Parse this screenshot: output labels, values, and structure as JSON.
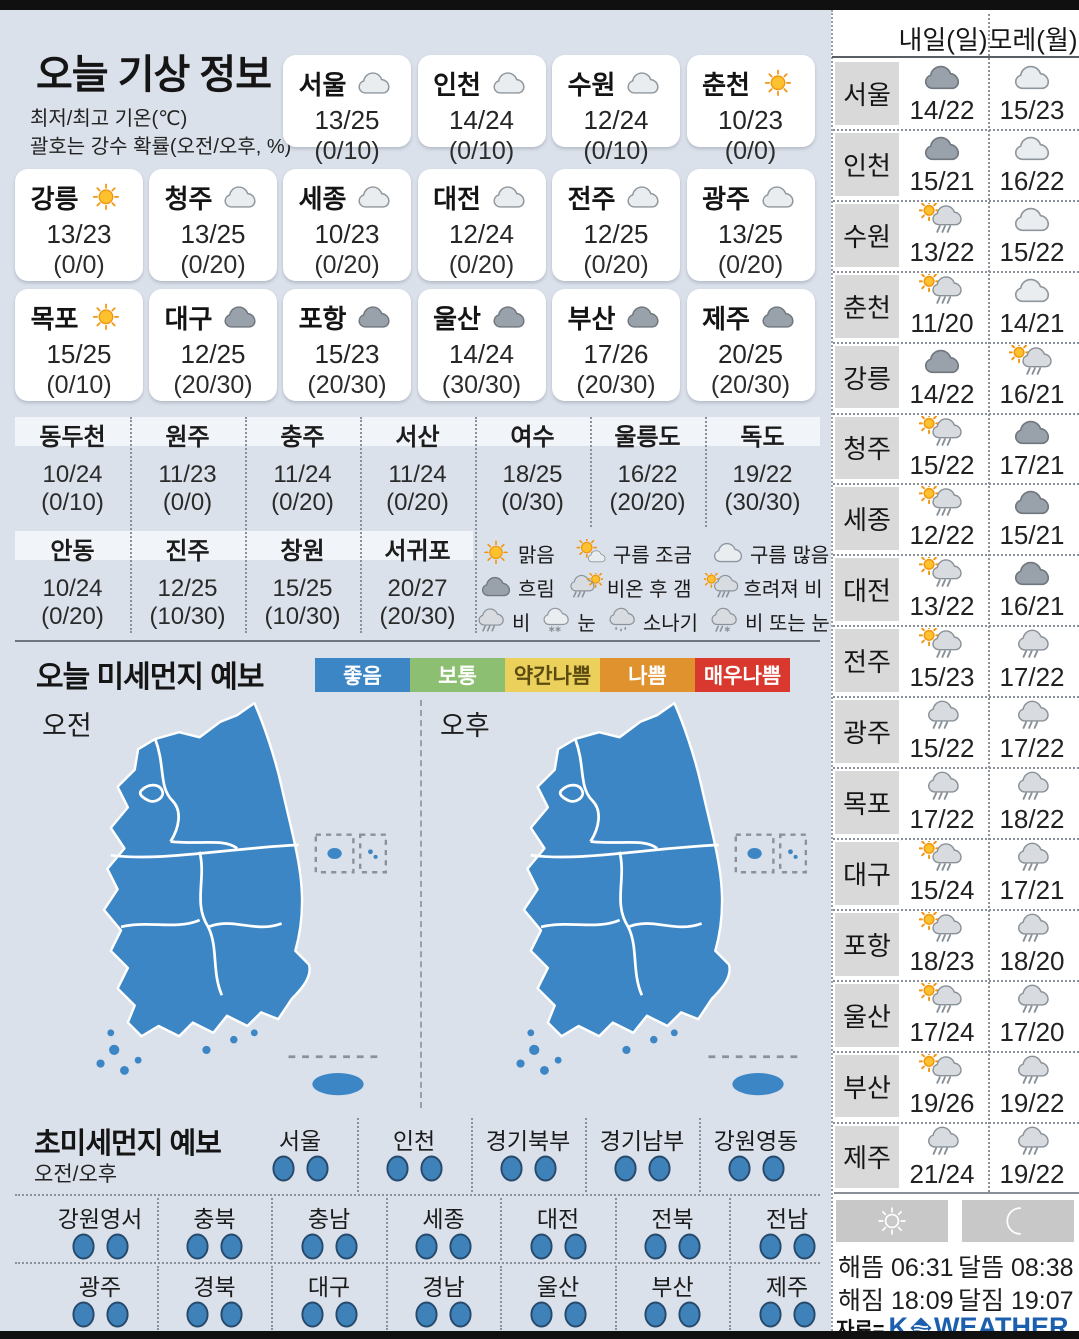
{
  "page": {
    "source_prefix": "자료=",
    "brand_k": "K",
    "brand_rest": "WEATHER"
  },
  "today": {
    "title": "오늘 기상 정보",
    "note_line1": "최저/최고 기온(℃)",
    "note_line2": "괄호는 강수 확률(오전/오후, %)",
    "cards": [
      {
        "city": "서울",
        "icon": "cloud-light",
        "temp": "13/25",
        "prob": "(0/10)"
      },
      {
        "city": "인천",
        "icon": "cloud-light",
        "temp": "14/24",
        "prob": "(0/10)"
      },
      {
        "city": "수원",
        "icon": "cloud-light",
        "temp": "12/24",
        "prob": "(0/10)"
      },
      {
        "city": "춘천",
        "icon": "sun",
        "temp": "10/23",
        "prob": "(0/0)"
      },
      {
        "city": "강릉",
        "icon": "sun",
        "temp": "13/23",
        "prob": "(0/0)"
      },
      {
        "city": "청주",
        "icon": "cloud-light",
        "temp": "13/25",
        "prob": "(0/20)"
      },
      {
        "city": "세종",
        "icon": "cloud-light",
        "temp": "10/23",
        "prob": "(0/20)"
      },
      {
        "city": "대전",
        "icon": "cloud-light",
        "temp": "12/24",
        "prob": "(0/20)"
      },
      {
        "city": "전주",
        "icon": "cloud-light",
        "temp": "12/25",
        "prob": "(0/20)"
      },
      {
        "city": "광주",
        "icon": "cloud-light",
        "temp": "13/25",
        "prob": "(0/20)"
      },
      {
        "city": "목포",
        "icon": "sun",
        "temp": "15/25",
        "prob": "(0/10)"
      },
      {
        "city": "대구",
        "icon": "cloud-dark",
        "temp": "12/25",
        "prob": "(20/30)"
      },
      {
        "city": "포항",
        "icon": "cloud-dark",
        "temp": "15/23",
        "prob": "(20/30)"
      },
      {
        "city": "울산",
        "icon": "cloud-dark",
        "temp": "14/24",
        "prob": "(30/30)"
      },
      {
        "city": "부산",
        "icon": "cloud-dark",
        "temp": "17/26",
        "prob": "(20/30)"
      },
      {
        "city": "제주",
        "icon": "cloud-dark",
        "temp": "20/25",
        "prob": "(20/30)"
      }
    ],
    "extra_row1": [
      {
        "city": "동두천",
        "temp": "10/24",
        "prob": "(0/10)"
      },
      {
        "city": "원주",
        "temp": "11/23",
        "prob": "(0/0)"
      },
      {
        "city": "충주",
        "temp": "11/24",
        "prob": "(0/20)"
      },
      {
        "city": "서산",
        "temp": "11/24",
        "prob": "(0/20)"
      },
      {
        "city": "여수",
        "temp": "18/25",
        "prob": "(0/30)"
      },
      {
        "city": "울릉도",
        "temp": "16/22",
        "prob": "(20/20)"
      },
      {
        "city": "독도",
        "temp": "19/22",
        "prob": "(30/30)"
      }
    ],
    "extra_row2": [
      {
        "city": "안동",
        "temp": "10/24",
        "prob": "(0/20)"
      },
      {
        "city": "진주",
        "temp": "12/25",
        "prob": "(10/30)"
      },
      {
        "city": "창원",
        "temp": "15/25",
        "prob": "(10/30)"
      },
      {
        "city": "서귀포",
        "temp": "20/27",
        "prob": "(20/30)"
      }
    ]
  },
  "weather_legend": [
    {
      "icon": "sun",
      "label": "맑음"
    },
    {
      "icon": "sun-cloud",
      "label": "구름 조금"
    },
    {
      "icon": "cloud-light",
      "label": "구름 많음"
    },
    {
      "icon": "cloud-dark",
      "label": "흐림"
    },
    {
      "icon": "rain-sun",
      "label": "비온 후 갬"
    },
    {
      "icon": "sun-rain",
      "label": "흐려져 비"
    },
    {
      "icon": "rain",
      "label": "비"
    },
    {
      "icon": "snow",
      "label": "눈"
    },
    {
      "icon": "shower",
      "label": "소나기"
    },
    {
      "icon": "rain-snow",
      "label": "비 또는 눈"
    }
  ],
  "dust": {
    "title": "오늘 미세먼지 예보",
    "levels": [
      {
        "label": "좋음",
        "bg": "#3d86c6",
        "fg": "#ffffff"
      },
      {
        "label": "보통",
        "bg": "#8cbf72",
        "fg": "#ffffff"
      },
      {
        "label": "약간나쁨",
        "bg": "#ecd05c",
        "fg": "#5b4b10"
      },
      {
        "label": "나쁨",
        "bg": "#df922e",
        "fg": "#ffffff"
      },
      {
        "label": "매우나쁨",
        "bg": "#d8382d",
        "fg": "#ffffff"
      }
    ],
    "map_labels": [
      "오전",
      "오후"
    ],
    "map_level_color": "#3d86c5"
  },
  "ultrafine": {
    "title": "초미세먼지 예보",
    "time_label": "오전/오후",
    "dot_color": "#3f82ba",
    "row1": [
      "서울",
      "인천",
      "경기북부",
      "경기남부",
      "강원영동"
    ],
    "row2": [
      "강원영서",
      "충북",
      "충남",
      "세종",
      "대전",
      "전북",
      "전남"
    ],
    "row3": [
      "광주",
      "경북",
      "대구",
      "경남",
      "울산",
      "부산",
      "제주"
    ]
  },
  "forecast": {
    "day1_label": "내일(일)",
    "day2_label": "모레(월)",
    "rows": [
      {
        "city": "서울",
        "d1_icon": "cloud-dark",
        "d1": "14/22",
        "d2_icon": "cloud-light",
        "d2": "15/23"
      },
      {
        "city": "인천",
        "d1_icon": "cloud-dark",
        "d1": "15/21",
        "d2_icon": "cloud-light",
        "d2": "16/22"
      },
      {
        "city": "수원",
        "d1_icon": "sun-rain",
        "d1": "13/22",
        "d2_icon": "cloud-light",
        "d2": "15/22"
      },
      {
        "city": "춘천",
        "d1_icon": "sun-rain",
        "d1": "11/20",
        "d2_icon": "cloud-light",
        "d2": "14/21"
      },
      {
        "city": "강릉",
        "d1_icon": "cloud-dark",
        "d1": "14/22",
        "d2_icon": "sun-rain",
        "d2": "16/21"
      },
      {
        "city": "청주",
        "d1_icon": "sun-rain",
        "d1": "15/22",
        "d2_icon": "cloud-dark",
        "d2": "17/21"
      },
      {
        "city": "세종",
        "d1_icon": "sun-rain",
        "d1": "12/22",
        "d2_icon": "cloud-dark",
        "d2": "15/21"
      },
      {
        "city": "대전",
        "d1_icon": "sun-rain",
        "d1": "13/22",
        "d2_icon": "cloud-dark",
        "d2": "16/21"
      },
      {
        "city": "전주",
        "d1_icon": "sun-rain",
        "d1": "15/23",
        "d2_icon": "rain",
        "d2": "17/22"
      },
      {
        "city": "광주",
        "d1_icon": "rain",
        "d1": "15/22",
        "d2_icon": "rain",
        "d2": "17/22"
      },
      {
        "city": "목포",
        "d1_icon": "rain",
        "d1": "17/22",
        "d2_icon": "rain",
        "d2": "18/22"
      },
      {
        "city": "대구",
        "d1_icon": "sun-rain",
        "d1": "15/24",
        "d2_icon": "rain",
        "d2": "17/21"
      },
      {
        "city": "포항",
        "d1_icon": "sun-rain",
        "d1": "18/23",
        "d2_icon": "rain",
        "d2": "18/20"
      },
      {
        "city": "울산",
        "d1_icon": "sun-rain",
        "d1": "17/24",
        "d2_icon": "rain",
        "d2": "17/20"
      },
      {
        "city": "부산",
        "d1_icon": "sun-rain",
        "d1": "19/26",
        "d2_icon": "rain",
        "d2": "19/22"
      },
      {
        "city": "제주",
        "d1_icon": "rain",
        "d1": "21/24",
        "d2_icon": "rain",
        "d2": "19/22"
      }
    ]
  },
  "sun_moon": {
    "sunrise_label": "해뜸",
    "sunrise": "06:31",
    "sunset_label": "해짐",
    "sunset": "18:09",
    "moonrise_label": "달뜸",
    "moonrise": "08:38",
    "moonset_label": "달짐",
    "moonset": "19:07"
  }
}
